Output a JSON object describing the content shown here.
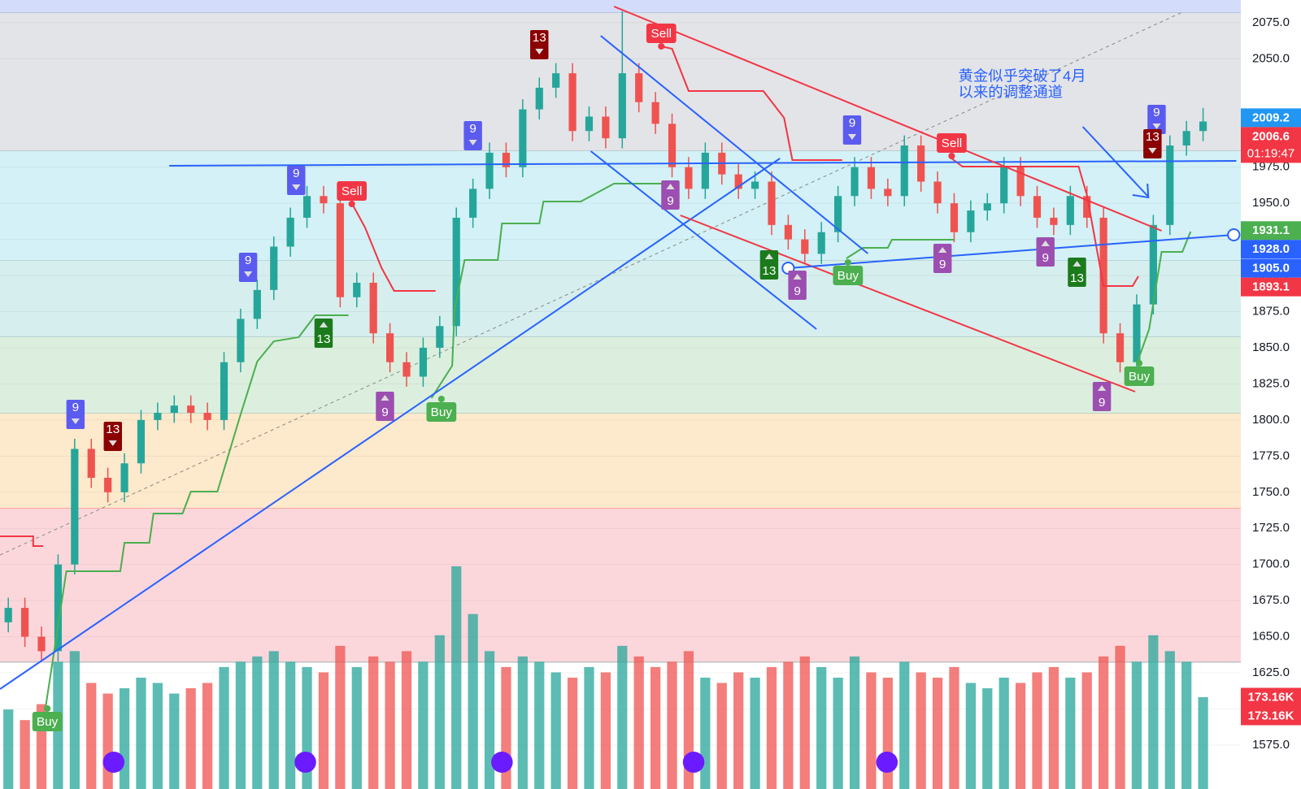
{
  "chart_data": {
    "type": "candlestick",
    "ylim": [
      1544.6,
      2090.7
    ],
    "yticks": [
      {
        "value": 1575,
        "label": "1575.0"
      },
      {
        "value": 1600,
        "label": "1600.0"
      },
      {
        "value": 1625,
        "label": "1625.0"
      },
      {
        "value": 1650,
        "label": "1650.0"
      },
      {
        "value": 1675,
        "label": "1675.0"
      },
      {
        "value": 1700,
        "label": "1700.0"
      },
      {
        "value": 1725,
        "label": "1725.0"
      },
      {
        "value": 1750,
        "label": "1750.0"
      },
      {
        "value": 1775,
        "label": "1775.0"
      },
      {
        "value": 1800,
        "label": "1800.0"
      },
      {
        "value": 1825,
        "label": "1825.0"
      },
      {
        "value": 1850,
        "label": "1850.0"
      },
      {
        "value": 1875,
        "label": "1875.0"
      },
      {
        "value": 1900,
        "label": "1900.0"
      },
      {
        "value": 1925,
        "label": "1925.0"
      },
      {
        "value": 1950,
        "label": "1950.0"
      },
      {
        "value": 1975,
        "label": "1975.0"
      },
      {
        "value": 2050,
        "label": "2050.0"
      },
      {
        "value": 2075,
        "label": "2075.0"
      }
    ],
    "grid": true,
    "up_color": "#26a69a",
    "down_color": "#ef5350",
    "zones": [
      {
        "from": 2090.7,
        "to": 2081.7,
        "color": "#d3ddfb"
      },
      {
        "from": 2081.7,
        "to": 1986.1,
        "color": "#e3e4e8"
      },
      {
        "from": 1986.1,
        "to": 1910.2,
        "color": "#d3f1f6"
      },
      {
        "from": 1910.2,
        "to": 1857.3,
        "color": "#d6eeee"
      },
      {
        "from": 1857.3,
        "to": 1804.5,
        "color": "#dcefdf"
      },
      {
        "from": 1804.5,
        "to": 1738.7,
        "color": "#fde9cb"
      },
      {
        "from": 1738.7,
        "to": 1632.4,
        "color": "#fbd7db"
      }
    ],
    "candles": [
      [
        1660,
        1677,
        1653,
        1670
      ],
      [
        1670,
        1677,
        1643,
        1650
      ],
      [
        1650,
        1657,
        1633,
        1640
      ],
      [
        1640,
        1707,
        1633,
        1700
      ],
      [
        1700,
        1787,
        1693,
        1780
      ],
      [
        1780,
        1787,
        1753,
        1760
      ],
      [
        1760,
        1767,
        1743,
        1750
      ],
      [
        1750,
        1777,
        1743,
        1770
      ],
      [
        1770,
        1807,
        1763,
        1800
      ],
      [
        1800,
        1812,
        1793,
        1805
      ],
      [
        1805,
        1817,
        1798,
        1810
      ],
      [
        1810,
        1817,
        1798,
        1805
      ],
      [
        1805,
        1812,
        1793,
        1800
      ],
      [
        1800,
        1847,
        1793,
        1840
      ],
      [
        1840,
        1877,
        1833,
        1870
      ],
      [
        1870,
        1897,
        1863,
        1890
      ],
      [
        1890,
        1927,
        1883,
        1920
      ],
      [
        1920,
        1947,
        1913,
        1940
      ],
      [
        1940,
        1962,
        1933,
        1955
      ],
      [
        1955,
        1962,
        1943,
        1950
      ],
      [
        1950,
        1957,
        1878,
        1885
      ],
      [
        1885,
        1902,
        1878,
        1895
      ],
      [
        1895,
        1902,
        1853,
        1860
      ],
      [
        1860,
        1867,
        1833,
        1840
      ],
      [
        1840,
        1847,
        1823,
        1830
      ],
      [
        1830,
        1857,
        1823,
        1850
      ],
      [
        1850,
        1872,
        1843,
        1865
      ],
      [
        1865,
        1947,
        1858,
        1940
      ],
      [
        1940,
        1967,
        1933,
        1960
      ],
      [
        1960,
        1992,
        1953,
        1985
      ],
      [
        1985,
        1992,
        1968,
        1975
      ],
      [
        1975,
        2022,
        1968,
        2015
      ],
      [
        2015,
        2037,
        2008,
        2030
      ],
      [
        2030,
        2047,
        2023,
        2040
      ],
      [
        2040,
        2047,
        1993,
        2000
      ],
      [
        2000,
        2017,
        1993,
        2010
      ],
      [
        2010,
        2017,
        1988,
        1995
      ],
      [
        1995,
        2083,
        1988,
        2040
      ],
      [
        2040,
        2047,
        2013,
        2020
      ],
      [
        2020,
        2027,
        1998,
        2005
      ],
      [
        2005,
        2012,
        1968,
        1975
      ],
      [
        1975,
        1982,
        1953,
        1960
      ],
      [
        1960,
        1992,
        1953,
        1985
      ],
      [
        1985,
        1992,
        1963,
        1970
      ],
      [
        1970,
        1977,
        1953,
        1960
      ],
      [
        1960,
        1972,
        1953,
        1965
      ],
      [
        1965,
        1972,
        1928,
        1935
      ],
      [
        1935,
        1942,
        1918,
        1925
      ],
      [
        1925,
        1932,
        1908,
        1915
      ],
      [
        1915,
        1937,
        1908,
        1930
      ],
      [
        1930,
        1962,
        1923,
        1955
      ],
      [
        1955,
        1982,
        1948,
        1975
      ],
      [
        1975,
        1982,
        1953,
        1960
      ],
      [
        1960,
        1967,
        1948,
        1955
      ],
      [
        1955,
        1997,
        1948,
        1990
      ],
      [
        1990,
        1997,
        1958,
        1965
      ],
      [
        1965,
        1972,
        1943,
        1950
      ],
      [
        1950,
        1957,
        1923,
        1930
      ],
      [
        1930,
        1952,
        1923,
        1945
      ],
      [
        1945,
        1957,
        1938,
        1950
      ],
      [
        1950,
        1982,
        1943,
        1975
      ],
      [
        1975,
        1982,
        1948,
        1955
      ],
      [
        1955,
        1962,
        1933,
        1940
      ],
      [
        1940,
        1947,
        1928,
        1935
      ],
      [
        1935,
        1962,
        1928,
        1955
      ],
      [
        1955,
        1962,
        1933,
        1940
      ],
      [
        1940,
        1947,
        1853,
        1860
      ],
      [
        1860,
        1867,
        1833,
        1840
      ],
      [
        1840,
        1887,
        1833,
        1880
      ],
      [
        1880,
        1942,
        1873,
        1935
      ],
      [
        1935,
        1997,
        1928,
        1990
      ],
      [
        1990,
        2007,
        1983,
        2000
      ],
      [
        2000,
        2016,
        1993,
        2006.6
      ]
    ],
    "volume_lim": [
      0,
      1488
    ],
    "volume": [
      150,
      130,
      160,
      240,
      260,
      200,
      180,
      190,
      210,
      200,
      180,
      190,
      200,
      230,
      240,
      250,
      260,
      240,
      230,
      220,
      270,
      230,
      250,
      240,
      260,
      240,
      290,
      420,
      330,
      260,
      230,
      250,
      240,
      220,
      210,
      230,
      220,
      270,
      250,
      230,
      240,
      260,
      210,
      200,
      220,
      210,
      230,
      240,
      250,
      230,
      210,
      250,
      220,
      210,
      240,
      220,
      210,
      230,
      200,
      190,
      210,
      200,
      220,
      230,
      210,
      220,
      250,
      270,
      240,
      290,
      260,
      240,
      173.16
    ],
    "price_labels": [
      {
        "value": 2009.2,
        "color": "#2196f3"
      },
      {
        "value": 2006.6,
        "color": "#f23645",
        "countdown": "01:19:47"
      },
      {
        "value": 1931.1,
        "color": "#4caf50"
      },
      {
        "value": 1928,
        "label": "1928.0",
        "color": "#2962ff"
      },
      {
        "value": 1905,
        "label": "1905.0",
        "color": "#2962ff"
      },
      {
        "value": 1893.1,
        "color": "#f23645"
      }
    ],
    "volume_labels": [
      {
        "value": 173.16,
        "label": "173.16K",
        "color": "#f23645"
      },
      {
        "value": 173.16,
        "label": "173.16K",
        "color": "#f23645"
      }
    ],
    "signals": {
      "sell": "Sell",
      "buy": "Buy",
      "setup": "9",
      "countdown": "13"
    },
    "annotation": [
      "黄金似乎突破了4月",
      "以来的调整通道"
    ]
  }
}
